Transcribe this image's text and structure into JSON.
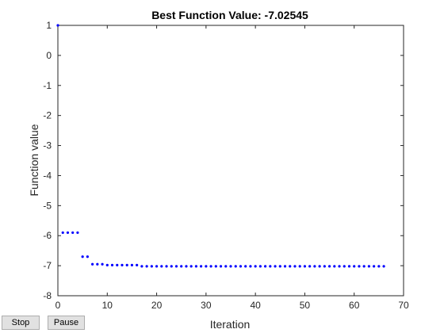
{
  "chart_data": {
    "type": "scatter",
    "title": "Best Function Value: -7.02545",
    "xlabel": "Iteration",
    "ylabel": "Function value",
    "xlim": [
      0,
      70
    ],
    "ylim": [
      -8,
      1
    ],
    "xticks": [
      "0",
      "10",
      "20",
      "30",
      "40",
      "50",
      "60",
      "70"
    ],
    "yticks": [
      "1",
      "0",
      "-1",
      "-2",
      "-3",
      "-4",
      "-5",
      "-6",
      "-7",
      "-8"
    ],
    "grid": false,
    "marker_color": "#0000ff",
    "series": [
      {
        "x": [
          0,
          1,
          2,
          3,
          4,
          5,
          6,
          7,
          8,
          9,
          10,
          11,
          12,
          13,
          14,
          15,
          16,
          17,
          18,
          19,
          20,
          21,
          22,
          23,
          24,
          25,
          26,
          27,
          28,
          29,
          30,
          31,
          32,
          33,
          34,
          35,
          36,
          37,
          38,
          39,
          40,
          41,
          42,
          43,
          44,
          45,
          46,
          47,
          48,
          49,
          50,
          51,
          52,
          53,
          54,
          55,
          56,
          57,
          58,
          59,
          60,
          61,
          62,
          63,
          64,
          65,
          66
        ],
        "y": [
          1,
          -5.9,
          -5.9,
          -5.9,
          -5.9,
          -6.7,
          -6.7,
          -6.95,
          -6.95,
          -6.95,
          -6.98,
          -6.98,
          -6.98,
          -6.98,
          -6.98,
          -6.98,
          -6.98,
          -7.02,
          -7.02,
          -7.02,
          -7.02,
          -7.02,
          -7.02,
          -7.02,
          -7.02,
          -7.02,
          -7.02,
          -7.02,
          -7.02,
          -7.02,
          -7.02,
          -7.02,
          -7.02,
          -7.02,
          -7.02,
          -7.02,
          -7.02,
          -7.02,
          -7.02,
          -7.02,
          -7.02,
          -7.02,
          -7.02,
          -7.02,
          -7.02,
          -7.02,
          -7.02,
          -7.02,
          -7.02,
          -7.02,
          -7.02,
          -7.02,
          -7.02,
          -7.02,
          -7.02,
          -7.02,
          -7.02,
          -7.02,
          -7.02,
          -7.02,
          -7.02,
          -7.02,
          -7.02,
          -7.02,
          -7.02,
          -7.02,
          -7.02
        ]
      }
    ]
  },
  "controls": {
    "stop_label": "Stop",
    "pause_label": "Pause"
  }
}
